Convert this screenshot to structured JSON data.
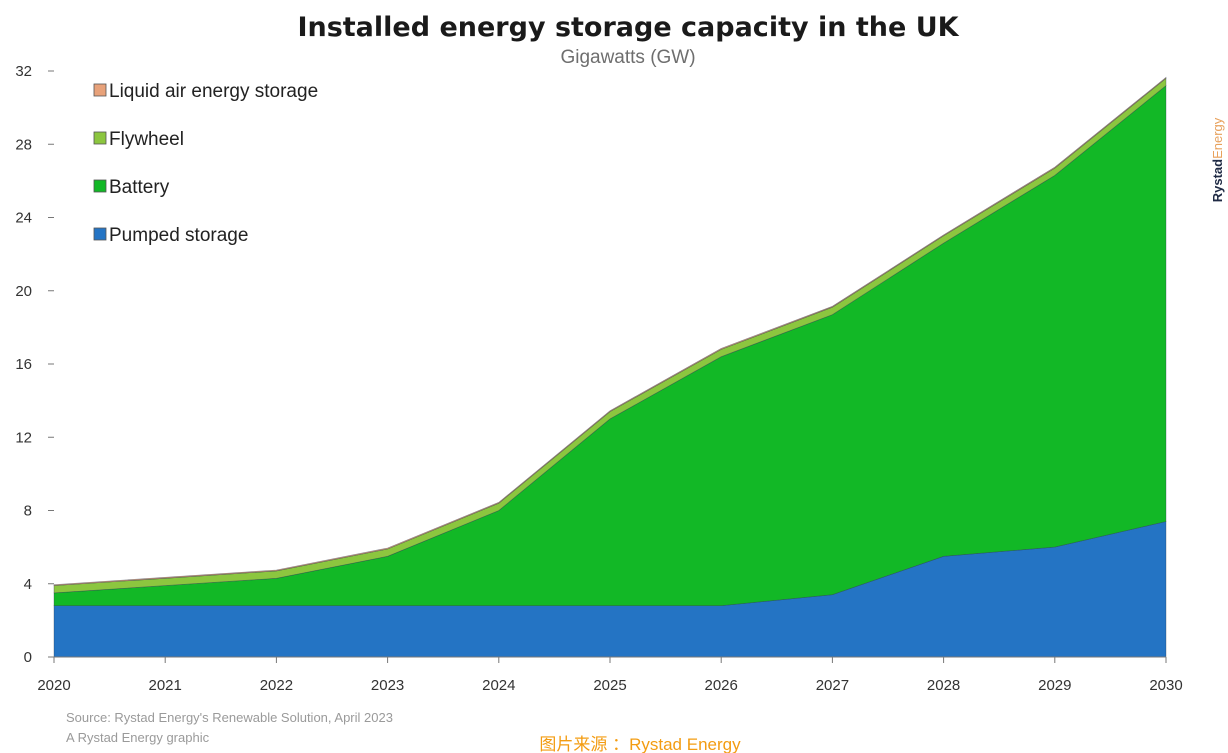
{
  "chart_data": {
    "type": "area",
    "stacked": true,
    "title": "Installed energy storage capacity in the UK",
    "subtitle": "Gigawatts (GW)",
    "x": [
      "2020",
      "2021",
      "2022",
      "2023",
      "2024",
      "2025",
      "2026",
      "2027",
      "2028",
      "2029",
      "2030"
    ],
    "ylim": [
      0,
      32
    ],
    "yticks": [
      "0",
      "4",
      "8",
      "12",
      "16",
      "20",
      "24",
      "28",
      "32"
    ],
    "grid": false,
    "legend_position": "top-left",
    "series": [
      {
        "name": "Pumped storage",
        "color": "#2474c4",
        "values": [
          2.8,
          2.8,
          2.8,
          2.8,
          2.8,
          2.8,
          2.8,
          3.4,
          5.5,
          6.0,
          7.4
        ]
      },
      {
        "name": "Battery",
        "color": "#12b826",
        "values": [
          0.7,
          1.1,
          1.5,
          2.7,
          5.2,
          10.2,
          13.6,
          15.3,
          17.1,
          20.3,
          23.8
        ]
      },
      {
        "name": "Flywheel",
        "color": "#8cc63f",
        "values": [
          0.4,
          0.4,
          0.4,
          0.4,
          0.4,
          0.4,
          0.4,
          0.4,
          0.4,
          0.4,
          0.4
        ]
      },
      {
        "name": "Liquid air energy storage",
        "color": "#e8a27a",
        "values": [
          0.05,
          0.05,
          0.05,
          0.05,
          0.05,
          0.05,
          0.05,
          0.05,
          0.05,
          0.05,
          0.05
        ]
      }
    ],
    "legend_order": [
      "Liquid air energy storage",
      "Flywheel",
      "Battery",
      "Pumped storage"
    ],
    "source_lines": [
      "Source: Rystad Energy's Renewable Solution, April 2023",
      "A Rystad Energy graphic"
    ]
  },
  "branding": {
    "brand_strong": "Rystad",
    "brand_light": "Energy"
  },
  "watermark": "图片来源 ：Rystad Energy"
}
